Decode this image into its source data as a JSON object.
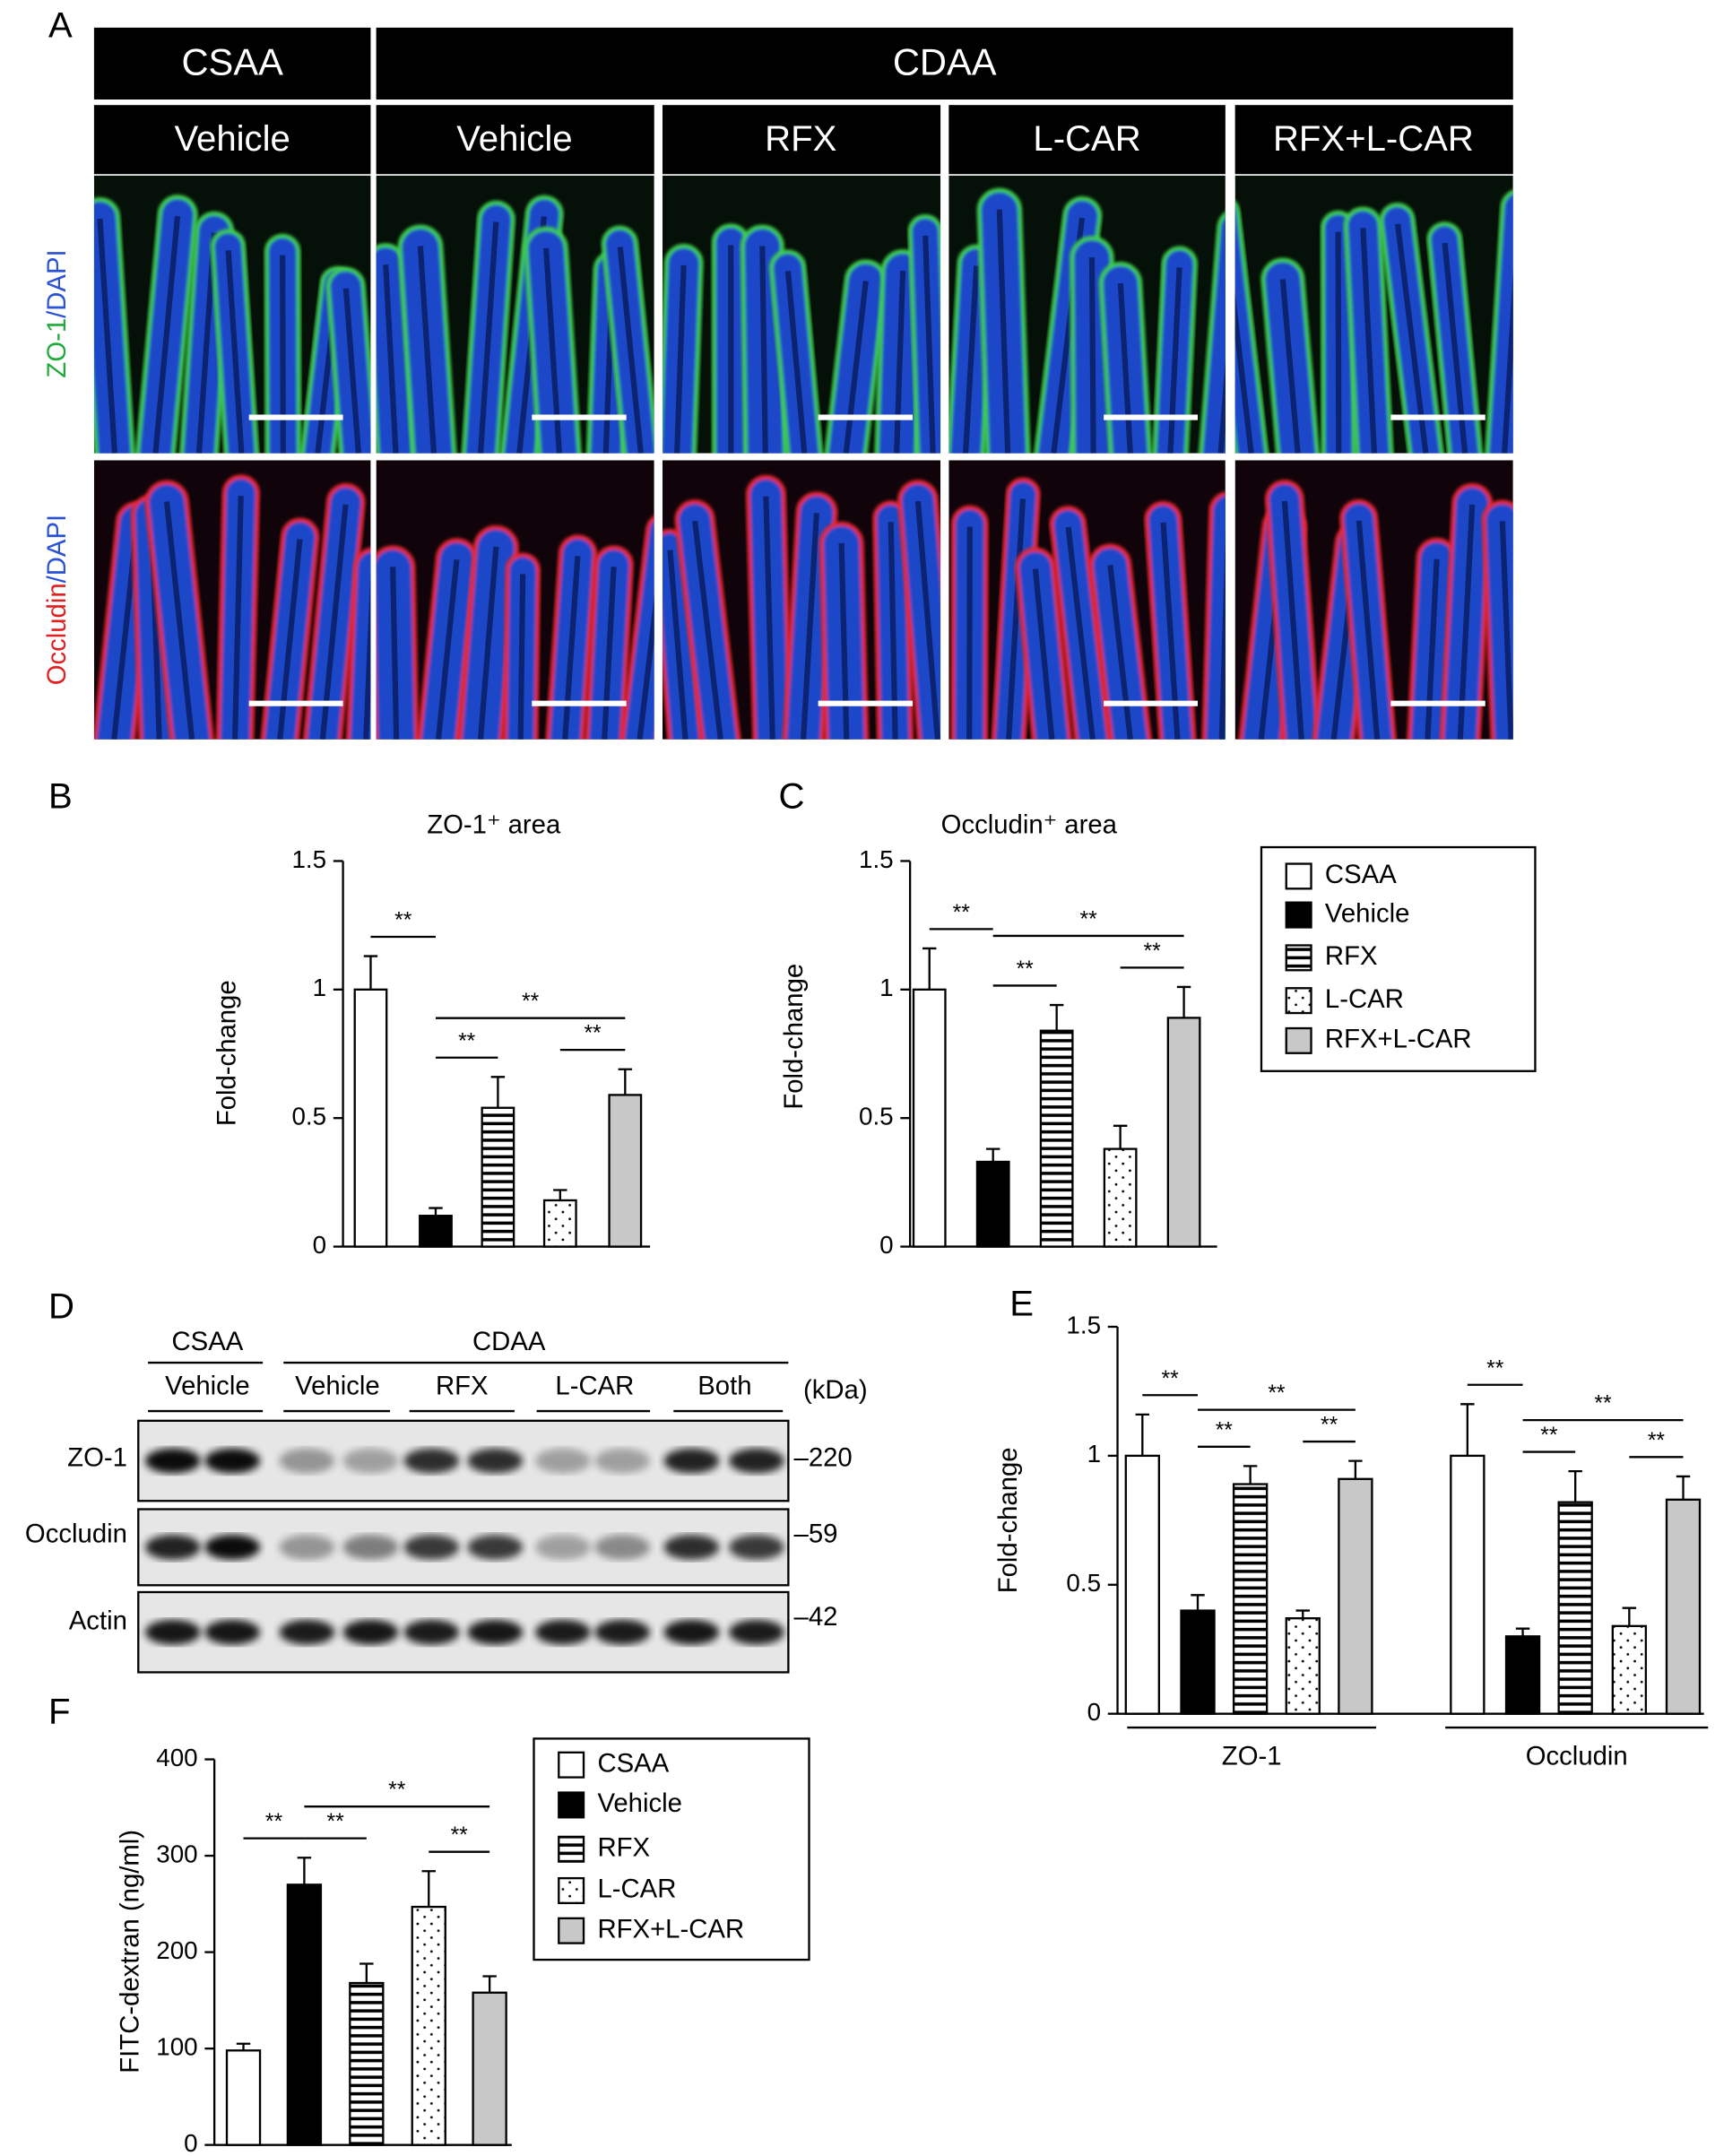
{
  "panel_a": {
    "letter": "A",
    "groups": [
      "CSAA",
      "CDAA"
    ],
    "columns": [
      "Vehicle",
      "Vehicle",
      "RFX",
      "L-CAR",
      "RFX+L-CAR"
    ],
    "rows": [
      {
        "marker": "ZO-1",
        "counterstain": "/DAPI"
      },
      {
        "marker": "Occludin",
        "counterstain": "/DAPI"
      }
    ]
  },
  "panel_d": {
    "letter": "D",
    "diets": [
      "CSAA",
      "CDAA"
    ],
    "treatments": [
      "Vehicle",
      "Vehicle",
      "RFX",
      "L-CAR",
      "Both"
    ],
    "unit": "(kDa)",
    "proteins": [
      {
        "name": "ZO-1",
        "mw": "–220"
      },
      {
        "name": "Occludin",
        "mw": "–59"
      },
      {
        "name": "Actin",
        "mw": "–42"
      }
    ]
  },
  "chart_data": [
    {
      "panel": "B",
      "type": "bar",
      "title": "ZO-1⁺ area",
      "ylabel": "Fold-change",
      "ylim": [
        0,
        1.5
      ],
      "yticks": [
        0,
        0.5,
        1,
        1.5
      ],
      "series": [
        {
          "color": "#ffffff",
          "pattern": "solid",
          "values": [
            1
          ],
          "errors": [
            0.13
          ]
        },
        {
          "color": "#000000",
          "pattern": "solid",
          "values": [
            0.12
          ],
          "errors": [
            0.03
          ]
        },
        {
          "color": "#000000",
          "pattern": "hstripe",
          "values": [
            0.54
          ],
          "errors": [
            0.12
          ]
        },
        {
          "color": "#000000",
          "pattern": "dots",
          "values": [
            0.18
          ],
          "errors": [
            0.04
          ]
        },
        {
          "color": "#c8c8c8",
          "pattern": "solid",
          "values": [
            0.59
          ],
          "errors": [
            0.1
          ]
        }
      ],
      "significance": [
        {
          "label": "**",
          "groups": [
            0,
            1
          ]
        },
        {
          "label": "**",
          "groups": [
            1,
            4
          ]
        },
        {
          "label": "**",
          "groups": [
            1,
            2
          ]
        },
        {
          "label": "**",
          "groups": [
            3,
            4
          ]
        }
      ]
    },
    {
      "panel": "C",
      "type": "bar",
      "title": "Occludin⁺ area",
      "ylabel": "Fold-change",
      "ylim": [
        0,
        1.5
      ],
      "yticks": [
        0,
        0.5,
        1,
        1.5
      ],
      "series": [
        {
          "name": "CSAA",
          "color": "#ffffff",
          "pattern": "solid",
          "values": [
            1
          ],
          "errors": [
            0.16
          ]
        },
        {
          "name": "Vehicle",
          "color": "#000000",
          "pattern": "solid",
          "values": [
            0.33
          ],
          "errors": [
            0.05
          ]
        },
        {
          "name": "RFX",
          "color": "#000000",
          "pattern": "hstripe",
          "values": [
            0.84
          ],
          "errors": [
            0.1
          ]
        },
        {
          "name": "L-CAR",
          "color": "#000000",
          "pattern": "dots",
          "values": [
            0.38
          ],
          "errors": [
            0.09
          ]
        },
        {
          "name": "RFX+L-CAR",
          "color": "#c8c8c8",
          "pattern": "solid",
          "values": [
            0.89
          ],
          "errors": [
            0.12
          ]
        }
      ],
      "significance": [
        {
          "label": "**",
          "groups": [
            0,
            1
          ]
        },
        {
          "label": "**",
          "groups": [
            1,
            4
          ]
        },
        {
          "label": "**",
          "groups": [
            1,
            2
          ]
        },
        {
          "label": "**",
          "groups": [
            3,
            4
          ]
        }
      ]
    },
    {
      "panel": "E",
      "type": "bar",
      "ylabel": "Fold-change",
      "ylim": [
        0,
        1.5
      ],
      "yticks": [
        0,
        0.5,
        1,
        1.5
      ],
      "categories": [
        "ZO-1",
        "Occludin"
      ],
      "series": [
        {
          "color": "#ffffff",
          "pattern": "solid",
          "values": [
            1,
            1
          ],
          "errors": [
            0.16,
            0.2
          ]
        },
        {
          "color": "#000000",
          "pattern": "solid",
          "values": [
            0.4,
            0.3
          ],
          "errors": [
            0.06,
            0.03
          ]
        },
        {
          "color": "#000000",
          "pattern": "hstripe",
          "values": [
            0.89,
            0.82
          ],
          "errors": [
            0.07,
            0.12
          ]
        },
        {
          "color": "#000000",
          "pattern": "dots",
          "values": [
            0.37,
            0.34
          ],
          "errors": [
            0.03,
            0.07
          ]
        },
        {
          "color": "#c8c8c8",
          "pattern": "solid",
          "values": [
            0.91,
            0.83
          ],
          "errors": [
            0.07,
            0.09
          ]
        }
      ],
      "significance": [
        {
          "label": "**",
          "category": 0,
          "groups": [
            0,
            1
          ]
        },
        {
          "label": "**",
          "category": 0,
          "groups": [
            1,
            4
          ]
        },
        {
          "label": "**",
          "category": 0,
          "groups": [
            1,
            2
          ]
        },
        {
          "label": "**",
          "category": 0,
          "groups": [
            3,
            4
          ]
        },
        {
          "label": "**",
          "category": 1,
          "groups": [
            0,
            1
          ]
        },
        {
          "label": "**",
          "category": 1,
          "groups": [
            1,
            4
          ]
        },
        {
          "label": "**",
          "category": 1,
          "groups": [
            1,
            2
          ]
        },
        {
          "label": "**",
          "category": 1,
          "groups": [
            3,
            4
          ]
        }
      ]
    },
    {
      "panel": "F",
      "type": "bar",
      "ylabel": "FITC-dextran (ng/ml)",
      "ylim": [
        0,
        400
      ],
      "yticks": [
        0,
        100,
        200,
        300,
        400
      ],
      "series": [
        {
          "name": "CSAA",
          "color": "#ffffff",
          "pattern": "solid",
          "values": [
            98
          ],
          "errors": [
            7
          ]
        },
        {
          "name": "Vehicle",
          "color": "#000000",
          "pattern": "solid",
          "values": [
            270
          ],
          "errors": [
            28
          ]
        },
        {
          "name": "RFX",
          "color": "#000000",
          "pattern": "hstripe",
          "values": [
            168
          ],
          "errors": [
            20
          ]
        },
        {
          "name": "L-CAR",
          "color": "#000000",
          "pattern": "dots",
          "values": [
            247
          ],
          "errors": [
            37
          ]
        },
        {
          "name": "RFX+L-CAR",
          "color": "#c8c8c8",
          "pattern": "solid",
          "values": [
            158
          ],
          "errors": [
            17
          ]
        }
      ],
      "significance": [
        {
          "label": "**",
          "groups": [
            0,
            1
          ]
        },
        {
          "label": "**",
          "groups": [
            1,
            2
          ]
        },
        {
          "label": "**",
          "groups": [
            1,
            4
          ]
        },
        {
          "label": "**",
          "groups": [
            3,
            4
          ]
        }
      ]
    }
  ]
}
